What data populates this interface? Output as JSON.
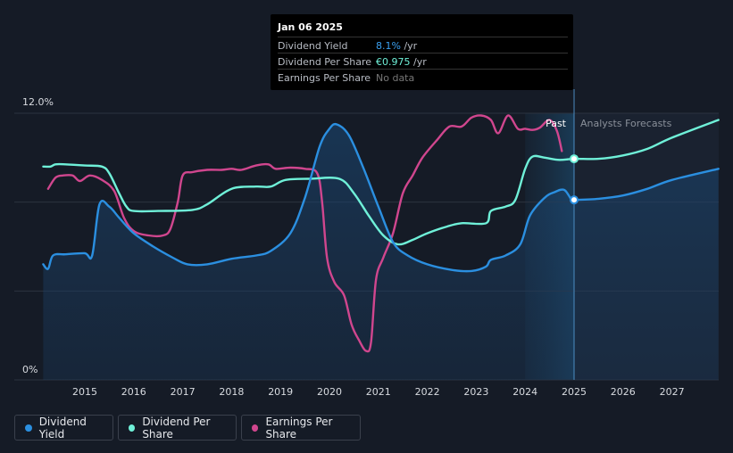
{
  "chart_data": {
    "type": "line",
    "y_axis": {
      "labels": [
        "12.0%",
        "0%"
      ],
      "ylim": [
        0,
        12
      ]
    },
    "x_axis": {
      "ticks": [
        "2015",
        "2016",
        "2017",
        "2018",
        "2019",
        "2020",
        "2021",
        "2022",
        "2023",
        "2024",
        "2025",
        "2026",
        "2027"
      ],
      "xlim": [
        2014.1,
        2027.95
      ]
    },
    "regions": {
      "past_label": "Past",
      "forecast_label": "Analysts Forecasts",
      "divider_x": 2025.0,
      "highlight_start": 2024.0
    },
    "series": [
      {
        "name": "Dividend Yield",
        "color": "#2b8fe0",
        "points": [
          [
            2014.15,
            5.2
          ],
          [
            2014.25,
            5.0
          ],
          [
            2014.35,
            5.6
          ],
          [
            2014.6,
            5.65
          ],
          [
            2015.0,
            5.7
          ],
          [
            2015.15,
            5.6
          ],
          [
            2015.3,
            7.9
          ],
          [
            2015.5,
            7.8
          ],
          [
            2015.7,
            7.3
          ],
          [
            2016.0,
            6.6
          ],
          [
            2016.4,
            6.0
          ],
          [
            2016.8,
            5.5
          ],
          [
            2017.1,
            5.2
          ],
          [
            2017.5,
            5.2
          ],
          [
            2018.0,
            5.45
          ],
          [
            2018.5,
            5.6
          ],
          [
            2018.8,
            5.8
          ],
          [
            2019.2,
            6.6
          ],
          [
            2019.5,
            8.2
          ],
          [
            2019.8,
            10.5
          ],
          [
            2020.0,
            11.3
          ],
          [
            2020.15,
            11.5
          ],
          [
            2020.4,
            11.0
          ],
          [
            2020.7,
            9.5
          ],
          [
            2021.0,
            7.8
          ],
          [
            2021.3,
            6.2
          ],
          [
            2021.6,
            5.6
          ],
          [
            2022.0,
            5.2
          ],
          [
            2022.5,
            4.95
          ],
          [
            2022.9,
            4.9
          ],
          [
            2023.2,
            5.1
          ],
          [
            2023.3,
            5.4
          ],
          [
            2023.6,
            5.6
          ],
          [
            2023.9,
            6.1
          ],
          [
            2024.1,
            7.4
          ],
          [
            2024.4,
            8.2
          ],
          [
            2024.6,
            8.45
          ],
          [
            2024.8,
            8.55
          ],
          [
            2024.95,
            8.1
          ],
          [
            2025.0,
            8.1
          ],
          [
            2025.5,
            8.15
          ],
          [
            2026.0,
            8.3
          ],
          [
            2026.5,
            8.6
          ],
          [
            2027.0,
            9.0
          ],
          [
            2027.95,
            9.5
          ]
        ]
      },
      {
        "name": "Dividend Per Share",
        "color": "#6ff0d8",
        "points": [
          [
            2014.15,
            9.6
          ],
          [
            2014.3,
            9.6
          ],
          [
            2014.4,
            9.7
          ],
          [
            2014.6,
            9.7
          ],
          [
            2015.0,
            9.65
          ],
          [
            2015.35,
            9.6
          ],
          [
            2015.5,
            9.3
          ],
          [
            2015.7,
            8.4
          ],
          [
            2015.85,
            7.8
          ],
          [
            2016.0,
            7.6
          ],
          [
            2016.5,
            7.6
          ],
          [
            2017.2,
            7.65
          ],
          [
            2017.5,
            7.9
          ],
          [
            2018.0,
            8.6
          ],
          [
            2018.5,
            8.7
          ],
          [
            2018.8,
            8.7
          ],
          [
            2019.1,
            9.0
          ],
          [
            2019.6,
            9.05
          ],
          [
            2020.2,
            9.05
          ],
          [
            2020.5,
            8.4
          ],
          [
            2020.8,
            7.4
          ],
          [
            2021.1,
            6.5
          ],
          [
            2021.4,
            6.1
          ],
          [
            2021.7,
            6.3
          ],
          [
            2022.0,
            6.6
          ],
          [
            2022.4,
            6.9
          ],
          [
            2022.7,
            7.05
          ],
          [
            2023.2,
            7.05
          ],
          [
            2023.3,
            7.6
          ],
          [
            2023.6,
            7.8
          ],
          [
            2023.8,
            8.1
          ],
          [
            2024.0,
            9.5
          ],
          [
            2024.15,
            10.05
          ],
          [
            2024.4,
            10.0
          ],
          [
            2024.7,
            9.9
          ],
          [
            2025.0,
            9.95
          ],
          [
            2025.5,
            9.95
          ],
          [
            2026.0,
            10.1
          ],
          [
            2026.5,
            10.4
          ],
          [
            2027.0,
            10.9
          ],
          [
            2027.95,
            11.7
          ]
        ]
      },
      {
        "name": "Earnings Per Share",
        "color": "#d0468e",
        "points": [
          [
            2014.25,
            8.6
          ],
          [
            2014.4,
            9.1
          ],
          [
            2014.55,
            9.2
          ],
          [
            2014.75,
            9.2
          ],
          [
            2014.9,
            8.95
          ],
          [
            2015.1,
            9.2
          ],
          [
            2015.35,
            9.0
          ],
          [
            2015.6,
            8.5
          ],
          [
            2015.8,
            7.3
          ],
          [
            2016.0,
            6.7
          ],
          [
            2016.3,
            6.5
          ],
          [
            2016.6,
            6.5
          ],
          [
            2016.75,
            6.8
          ],
          [
            2016.9,
            8.0
          ],
          [
            2017.0,
            9.2
          ],
          [
            2017.2,
            9.35
          ],
          [
            2017.5,
            9.45
          ],
          [
            2017.8,
            9.45
          ],
          [
            2018.0,
            9.5
          ],
          [
            2018.2,
            9.45
          ],
          [
            2018.5,
            9.65
          ],
          [
            2018.75,
            9.7
          ],
          [
            2018.9,
            9.5
          ],
          [
            2019.2,
            9.55
          ],
          [
            2019.5,
            9.5
          ],
          [
            2019.75,
            9.3
          ],
          [
            2019.85,
            8.0
          ],
          [
            2019.95,
            5.5
          ],
          [
            2020.1,
            4.4
          ],
          [
            2020.3,
            3.8
          ],
          [
            2020.45,
            2.5
          ],
          [
            2020.6,
            1.8
          ],
          [
            2020.75,
            1.3
          ],
          [
            2020.85,
            1.7
          ],
          [
            2020.95,
            4.5
          ],
          [
            2021.1,
            5.5
          ],
          [
            2021.3,
            6.6
          ],
          [
            2021.5,
            8.4
          ],
          [
            2021.7,
            9.2
          ],
          [
            2021.9,
            10.0
          ],
          [
            2022.2,
            10.8
          ],
          [
            2022.45,
            11.4
          ],
          [
            2022.7,
            11.4
          ],
          [
            2022.9,
            11.8
          ],
          [
            2023.1,
            11.9
          ],
          [
            2023.3,
            11.7
          ],
          [
            2023.45,
            11.1
          ],
          [
            2023.65,
            11.9
          ],
          [
            2023.85,
            11.3
          ],
          [
            2024.0,
            11.3
          ],
          [
            2024.15,
            11.25
          ],
          [
            2024.3,
            11.35
          ],
          [
            2024.5,
            11.7
          ],
          [
            2024.65,
            11.2
          ],
          [
            2024.75,
            10.3
          ]
        ]
      }
    ],
    "markers": [
      {
        "series": "Dividend Yield",
        "x": 2025.0,
        "y": 8.1
      },
      {
        "series": "Dividend Per Share",
        "x": 2025.0,
        "y": 9.95
      }
    ]
  },
  "tooltip": {
    "date": "Jan 06 2025",
    "rows": [
      {
        "label": "Dividend Yield",
        "value": "8.1%",
        "unit": " /yr"
      },
      {
        "label": "Dividend Per Share",
        "value": "€0.975",
        "unit": " /yr"
      },
      {
        "label": "Earnings Per Share",
        "value": "No data",
        "unit": ""
      }
    ]
  },
  "legend": [
    {
      "label": "Dividend Yield",
      "color": "#2b8fe0"
    },
    {
      "label": "Dividend Per Share",
      "color": "#6ff0d8"
    },
    {
      "label": "Earnings Per Share",
      "color": "#d0468e"
    }
  ]
}
